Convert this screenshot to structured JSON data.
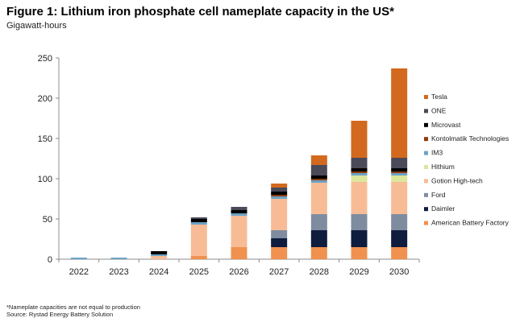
{
  "chart_data": {
    "type": "bar",
    "stacked": true,
    "title": "Figure 1: Lithium iron phosphate cell nameplate capacity in the US*",
    "subtitle": "Gigawatt-hours",
    "xlabel": "",
    "ylabel": "Gigawatt-hours",
    "ylim": [
      0,
      250
    ],
    "yticks": [
      "0",
      "50",
      "100",
      "150",
      "200",
      "250"
    ],
    "grid": false,
    "legend_position": "right",
    "categories": [
      "2022",
      "2023",
      "2024",
      "2025",
      "2026",
      "2027",
      "2028",
      "2029",
      "2030"
    ],
    "series": [
      {
        "name": "American Battery Factory",
        "color": "#F0914F",
        "values": [
          0,
          0,
          0,
          4,
          15,
          15,
          15,
          15,
          15
        ]
      },
      {
        "name": "Daimler",
        "color": "#0E1C3D",
        "values": [
          0,
          0,
          0,
          0,
          0,
          11,
          21,
          21,
          21
        ]
      },
      {
        "name": "Ford",
        "color": "#7F8C9F",
        "values": [
          0,
          0,
          0,
          0,
          0,
          10,
          20,
          20,
          20
        ]
      },
      {
        "name": "Gotion High-tech",
        "color": "#F7BC96",
        "values": [
          0,
          0,
          4,
          39,
          39,
          39,
          39,
          40,
          40
        ]
      },
      {
        "name": "Hithium",
        "color": "#DCE69C",
        "values": [
          0,
          0,
          0,
          0,
          0,
          0,
          0,
          8,
          8
        ]
      },
      {
        "name": "IM3",
        "color": "#6BA3C7",
        "values": [
          2,
          2,
          2,
          3,
          3,
          3,
          3,
          3,
          3
        ]
      },
      {
        "name": "Kontolmatik Technologies",
        "color": "#8E3B0E",
        "values": [
          0,
          0,
          0,
          0,
          0,
          2,
          2,
          2,
          2
        ]
      },
      {
        "name": "Microvast",
        "color": "#000000",
        "values": [
          0,
          0,
          4,
          4,
          4,
          4,
          4,
          4,
          4
        ]
      },
      {
        "name": "ONE",
        "color": "#4A4A59",
        "values": [
          0,
          0,
          0,
          2,
          4,
          5,
          13,
          13,
          13
        ]
      },
      {
        "name": "Tesla",
        "color": "#D2691E",
        "values": [
          0,
          0,
          0,
          0,
          0,
          5,
          12,
          46,
          111
        ]
      }
    ],
    "footnotes": [
      "*Nameplate capacities are not equal to production",
      "Source: Rystad Energy Battery Solution"
    ]
  }
}
